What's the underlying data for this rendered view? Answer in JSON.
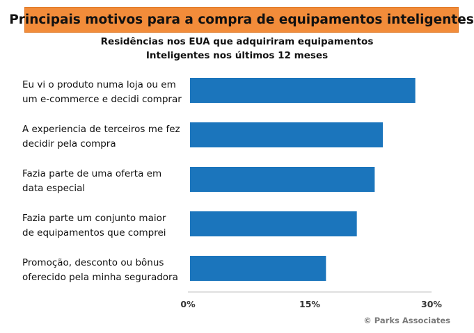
{
  "chart_data": {
    "type": "bar",
    "orientation": "horizontal",
    "title": "Principais motivos para a compra de equipamentos inteligentes",
    "subtitle": [
      "Residências nos EUA que adquiriram equipamentos",
      "Inteligentes nos últimos 12 meses"
    ],
    "categories": [
      [
        "Eu vi o produto numa loja ou em",
        "um e-commerce e decidi comprar"
      ],
      [
        "A experiencia de terceiros me fez",
        "decidir pela compra"
      ],
      [
        "Fazia parte de uma oferta em",
        "data especial"
      ],
      [
        "Fazia parte um conjunto maior",
        "de equipamentos que comprei"
      ],
      [
        "Promoção, desconto ou bônus",
        "oferecido pela minha seguradora"
      ]
    ],
    "values": [
      28,
      24,
      23,
      20.8,
      17
    ],
    "xlim": [
      0,
      30
    ],
    "xticks": [
      "0%",
      "15%",
      "30%"
    ],
    "bar_color": "#1B75BC",
    "grid": false,
    "legend": "none"
  },
  "copyright": "© Parks Associates"
}
